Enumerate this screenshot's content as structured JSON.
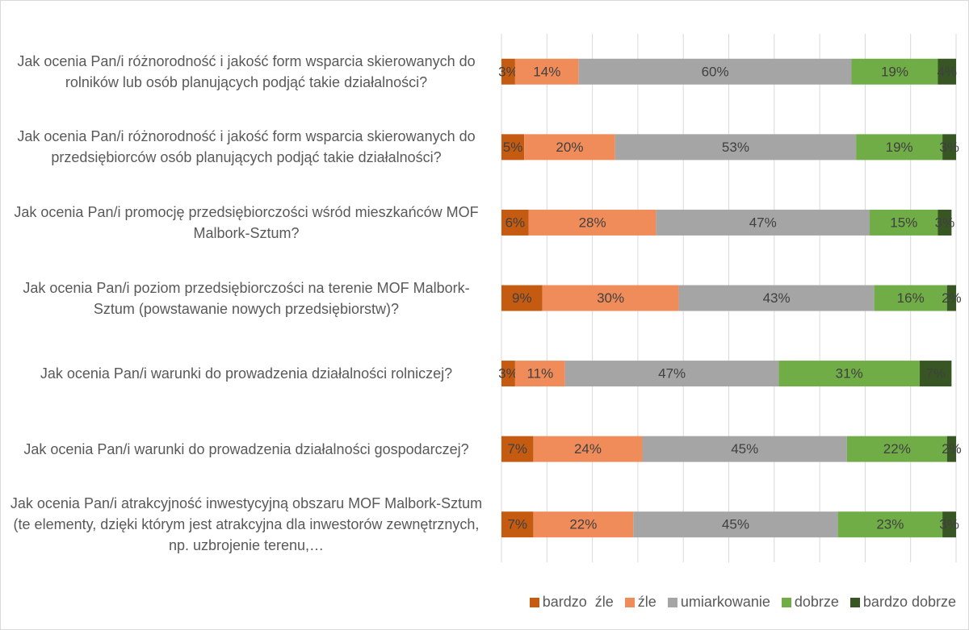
{
  "chart_data": {
    "type": "stacked_barh",
    "categories": [
      "Jak ocenia Pan/i różnorodność i jakość form wsparcia skierowanych do rolników lub osób planujących podjąć takie działalności?",
      "Jak ocenia Pan/i różnorodność i jakość form wsparcia skierowanych do przedsiębiorców osób planujących podjąć takie działalności?",
      "Jak ocenia Pan/i promocję przedsiębiorczości wśród mieszkańców MOF Malbork-Sztum?",
      "Jak ocenia Pan/i poziom przedsiębiorczości na terenie MOF Malbork-Sztum (powstawanie nowych przedsiębiorstw)?",
      "Jak ocenia Pan/i warunki do prowadzenia działalności rolniczej?",
      "Jak ocenia Pan/i warunki do prowadzenia działalności gospodarczej?",
      "Jak ocenia Pan/i atrakcyjność inwestycyjną obszaru MOF Malbork-Sztum (te elementy, dzięki którym jest atrakcyjna dla inwestorów zewnętrznych, np. uzbrojenie terenu,…"
    ],
    "series": [
      {
        "name": "bardzo  źle",
        "color": "#c55a11",
        "values": [
          3,
          5,
          6,
          9,
          3,
          7,
          7
        ],
        "value_labels": [
          "3%",
          "5%",
          "6%",
          "9%",
          "3%",
          "7%",
          "7%"
        ]
      },
      {
        "name": "źle",
        "color": "#f08c5a",
        "values": [
          14,
          20,
          28,
          30,
          11,
          24,
          22
        ],
        "value_labels": [
          "14%",
          "20%",
          "28%",
          "30%",
          "11%",
          "24%",
          "22%"
        ]
      },
      {
        "name": "umiarkowanie",
        "color": "#a5a5a5",
        "values": [
          60,
          53,
          47,
          43,
          47,
          45,
          45
        ],
        "value_labels": [
          "60%",
          "53%",
          "47%",
          "43%",
          "47%",
          "45%",
          "45%"
        ]
      },
      {
        "name": "dobrze",
        "color": "#70ad47",
        "values": [
          19,
          19,
          15,
          16,
          31,
          22,
          23
        ],
        "value_labels": [
          "19%",
          "19%",
          "15%",
          "16%",
          "31%",
          "22%",
          "23%"
        ]
      },
      {
        "name": "bardzo dobrze",
        "color": "#375623",
        "values": [
          4,
          3,
          3,
          2,
          7,
          2,
          3
        ],
        "value_labels": [
          "4%",
          "3%",
          "3%",
          "2%",
          "7%",
          "2%",
          "3%"
        ]
      }
    ],
    "xlim": [
      0,
      100
    ],
    "xticks": [
      0,
      10,
      20,
      30,
      40,
      50,
      60,
      70,
      80,
      90,
      100
    ],
    "grid": true,
    "legend": "bottom-right"
  }
}
